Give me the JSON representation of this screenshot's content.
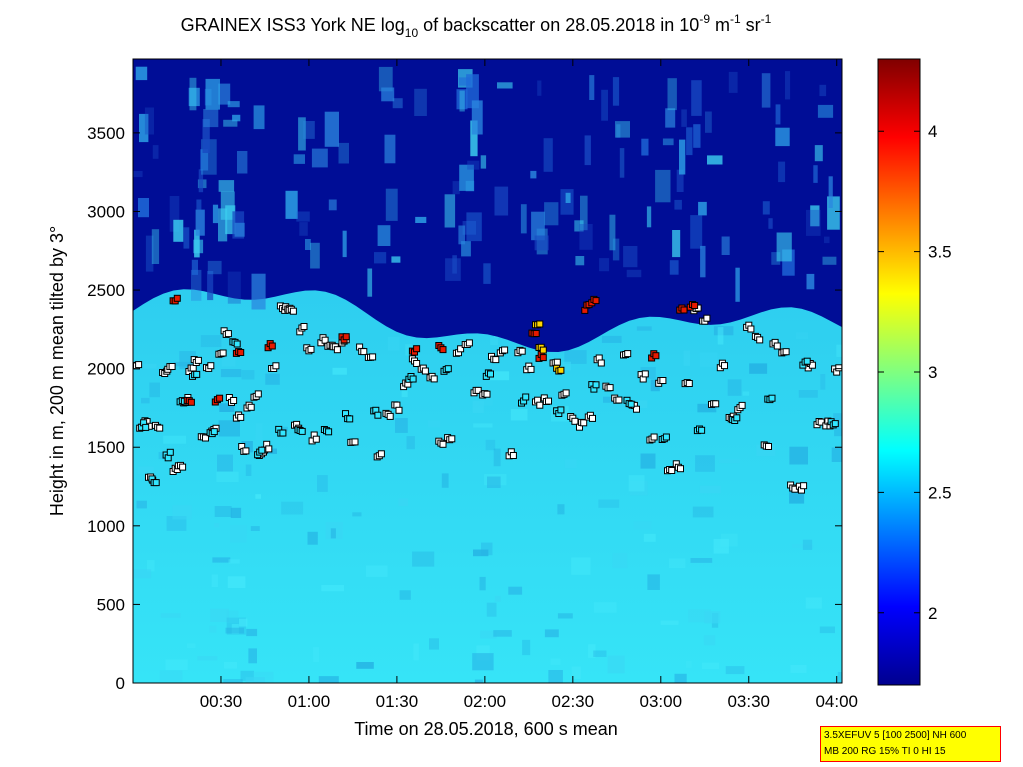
{
  "title": {
    "main": "GRAINEX ISS3 York NE log",
    "sub": "10",
    "rest": " of backscatter on 28.05.2018 in 10",
    "exp1": "-9",
    "unit1": " m",
    "exp2": "-1",
    "unit2": " sr",
    "exp3": "-1"
  },
  "info_box": {
    "line1": "3.5XEFUV 5 [100 2500] NH 600",
    "line2": "MB 200 RG 15% TI 0 HI 15"
  },
  "chart_data": {
    "type": "heatmap",
    "title": "GRAINEX ISS3 York NE log10 of backscatter on 28.05.2018 in 10^-9 m^-1 sr^-1",
    "xlabel": "Time on 28.05.2018, 600 s mean",
    "ylabel": "Height in m, 200 m mean tilted by 3°",
    "x_tick_labels": [
      "00:30",
      "01:00",
      "01:30",
      "02:00",
      "02:30",
      "03:00",
      "03:30",
      "04:00"
    ],
    "x_ticks_hours": [
      0.5,
      1.0,
      1.5,
      2.0,
      2.5,
      3.0,
      3.5,
      4.0
    ],
    "xlim_hours": [
      0.0,
      4.03
    ],
    "y_ticks": [
      0,
      500,
      1000,
      1500,
      2000,
      2500,
      3000,
      3500
    ],
    "ylim": [
      0,
      3970
    ],
    "colorbar": {
      "colormap": "jet",
      "ticks": [
        2,
        2.5,
        3,
        3.5,
        4
      ],
      "clim": [
        1.7,
        4.3
      ]
    },
    "layers": {
      "boundary_layer_top_m": 2200,
      "lower_layer_value": 2.72,
      "upper_layer_value": 1.75
    },
    "markers": {
      "description_series": [
        {
          "name": "layer heights",
          "color": "#ffffff",
          "points": [
            [
              0.02,
              2020
            ],
            [
              0.05,
              1640
            ],
            [
              0.08,
              1650
            ],
            [
              0.1,
              1300
            ],
            [
              0.14,
              1630
            ],
            [
              0.18,
              1980
            ],
            [
              0.21,
              2010
            ],
            [
              0.24,
              1350
            ],
            [
              0.27,
              1380
            ],
            [
              0.3,
              1800
            ],
            [
              0.33,
              1990
            ],
            [
              0.36,
              2050
            ],
            [
              0.4,
              1560
            ],
            [
              0.43,
              2000
            ],
            [
              0.46,
              1620
            ],
            [
              0.5,
              2100
            ],
            [
              0.53,
              2230
            ],
            [
              0.56,
              1800
            ],
            [
              0.6,
              1700
            ],
            [
              0.63,
              1490
            ],
            [
              0.66,
              1750
            ],
            [
              0.7,
              1820
            ],
            [
              0.73,
              1460
            ],
            [
              0.76,
              1500
            ],
            [
              0.8,
              2000
            ],
            [
              0.85,
              2380
            ],
            [
              0.88,
              2380
            ],
            [
              0.9,
              2370
            ],
            [
              0.93,
              1640
            ],
            [
              0.96,
              2250
            ],
            [
              1.0,
              2120
            ],
            [
              1.03,
              1560
            ],
            [
              1.08,
              2180
            ],
            [
              1.12,
              2140
            ],
            [
              1.15,
              2130
            ],
            [
              1.2,
              2180
            ],
            [
              1.25,
              1550
            ],
            [
              1.3,
              2120
            ],
            [
              1.35,
              2080
            ],
            [
              1.4,
              1440
            ],
            [
              1.45,
              1700
            ],
            [
              1.5,
              1750
            ],
            [
              1.55,
              1900
            ],
            [
              1.6,
              2050
            ],
            [
              1.65,
              2000
            ],
            [
              1.7,
              1950
            ],
            [
              1.75,
              1520
            ],
            [
              1.8,
              1550
            ],
            [
              1.85,
              2110
            ],
            [
              1.9,
              2150
            ],
            [
              1.95,
              1850
            ],
            [
              2.0,
              1850
            ],
            [
              2.05,
              2060
            ],
            [
              2.1,
              2100
            ],
            [
              2.15,
              1460
            ],
            [
              2.2,
              2110
            ],
            [
              2.25,
              2000
            ],
            [
              2.3,
              1780
            ],
            [
              2.35,
              1800
            ],
            [
              2.4,
              2050
            ],
            [
              2.45,
              1850
            ],
            [
              2.5,
              1680
            ],
            [
              2.55,
              1640
            ],
            [
              2.6,
              1700
            ],
            [
              2.65,
              2050
            ],
            [
              2.7,
              1880
            ],
            [
              2.75,
              1800
            ],
            [
              2.8,
              2090
            ],
            [
              2.85,
              1750
            ],
            [
              2.9,
              1950
            ],
            [
              2.95,
              1550
            ],
            [
              3.0,
              1920
            ],
            [
              3.05,
              1350
            ],
            [
              3.1,
              1380
            ],
            [
              3.15,
              1900
            ],
            [
              3.2,
              2380
            ],
            [
              3.25,
              2320
            ],
            [
              3.3,
              1770
            ],
            [
              3.35,
              2020
            ],
            [
              3.4,
              1700
            ],
            [
              3.45,
              1750
            ],
            [
              3.5,
              2260
            ],
            [
              3.55,
              2200
            ],
            [
              3.6,
              1500
            ],
            [
              3.65,
              2150
            ],
            [
              3.7,
              2100
            ],
            [
              3.75,
              1250
            ],
            [
              3.8,
              1240
            ],
            [
              3.85,
              2020
            ],
            [
              3.9,
              1660
            ],
            [
              3.95,
              1650
            ],
            [
              4.0,
              1990
            ]
          ]
        },
        {
          "name": "layer heights (cyan)",
          "color": "#33e6ff",
          "points": [
            [
              0.06,
              1640
            ],
            [
              0.12,
              1280
            ],
            [
              0.2,
              1450
            ],
            [
              0.28,
              1800
            ],
            [
              0.35,
              1950
            ],
            [
              0.45,
              1580
            ],
            [
              0.58,
              2170
            ],
            [
              0.72,
              1470
            ],
            [
              0.84,
              1600
            ],
            [
              0.95,
              1620
            ],
            [
              1.1,
              1600
            ],
            [
              1.22,
              1700
            ],
            [
              1.38,
              1720
            ],
            [
              1.58,
              1950
            ],
            [
              1.78,
              2000
            ],
            [
              2.02,
              1960
            ],
            [
              2.22,
              1800
            ],
            [
              2.42,
              1720
            ],
            [
              2.62,
              1880
            ],
            [
              2.82,
              1780
            ],
            [
              3.02,
              1560
            ],
            [
              3.22,
              1620
            ],
            [
              3.42,
              1690
            ],
            [
              3.62,
              1800
            ],
            [
              3.82,
              2040
            ],
            [
              3.98,
              1650
            ]
          ]
        },
        {
          "name": "high values (red)",
          "color": "#e61a00",
          "points": [
            [
              0.24,
              2440
            ],
            [
              0.32,
              1780
            ],
            [
              0.48,
              1800
            ],
            [
              0.6,
              2100
            ],
            [
              0.78,
              2150
            ],
            [
              1.2,
              2200
            ],
            [
              1.6,
              2120
            ],
            [
              1.75,
              2140
            ],
            [
              2.28,
              2240
            ],
            [
              2.32,
              2080
            ],
            [
              2.58,
              2390
            ],
            [
              2.62,
              2430
            ],
            [
              2.96,
              2080
            ],
            [
              3.12,
              2380
            ],
            [
              3.18,
              2410
            ]
          ]
        },
        {
          "name": "high values (yellow)",
          "color": "#ffd500",
          "points": [
            [
              2.3,
              2270
            ],
            [
              2.32,
              2120
            ],
            [
              2.42,
              1990
            ]
          ]
        }
      ]
    }
  }
}
